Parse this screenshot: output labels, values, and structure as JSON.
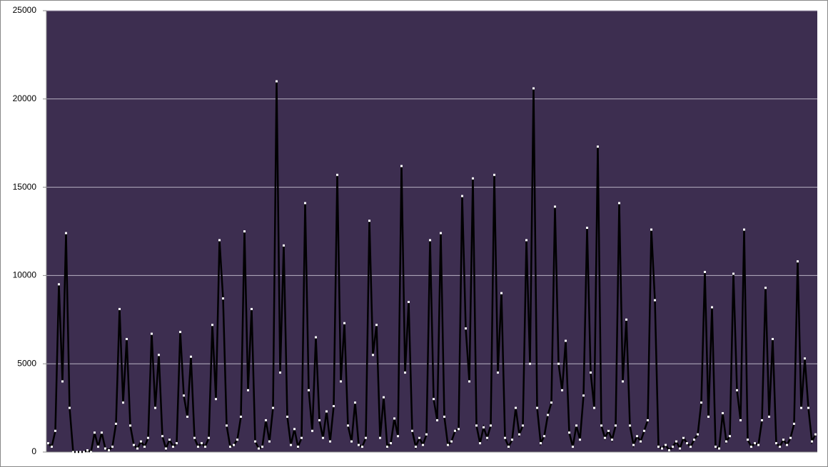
{
  "chart_data": {
    "type": "line",
    "ylim": [
      0,
      25000
    ],
    "yticks": [
      0,
      5000,
      10000,
      15000,
      20000,
      25000
    ],
    "grid": true,
    "plot_background": "#3d2e50",
    "grid_color": "#b9b2c4",
    "series": [
      {
        "color": "#000000",
        "marker_color": "#ffffff",
        "values": [
          500,
          300,
          1200,
          9500,
          4000,
          12400,
          2500,
          0,
          0,
          0,
          0,
          100,
          0,
          1100,
          300,
          1100,
          200,
          100,
          300,
          1600,
          8100,
          2800,
          6400,
          1500,
          400,
          200,
          600,
          300,
          800,
          6700,
          2500,
          5500,
          900,
          200,
          700,
          300,
          500,
          6800,
          3200,
          2000,
          5400,
          800,
          300,
          500,
          300,
          800,
          7200,
          3000,
          12000,
          8700,
          1500,
          300,
          400,
          700,
          2000,
          12500,
          3500,
          8100,
          600,
          200,
          300,
          1800,
          600,
          2500,
          21000,
          4500,
          11700,
          2000,
          400,
          1300,
          300,
          800,
          14100,
          3500,
          1200,
          6500,
          1800,
          800,
          2300,
          600,
          2600,
          15700,
          4000,
          7300,
          1500,
          600,
          2800,
          400,
          300,
          800,
          13100,
          5500,
          7200,
          800,
          3100,
          300,
          500,
          1900,
          900,
          16200,
          4500,
          8500,
          1200,
          300,
          800,
          400,
          1000,
          12000,
          3000,
          1800,
          12400,
          2000,
          400,
          600,
          1200,
          1300,
          14500,
          7000,
          4000,
          15500,
          1500,
          500,
          1400,
          800,
          1500,
          15700,
          4500,
          9000,
          800,
          300,
          700,
          2500,
          1000,
          1500,
          12000,
          5000,
          20600,
          2500,
          500,
          900,
          2100,
          2800,
          13900,
          5000,
          3500,
          6300,
          1100,
          300,
          1500,
          700,
          3200,
          12700,
          4500,
          2500,
          17300,
          1500,
          800,
          1200,
          700,
          1500,
          14100,
          4000,
          7500,
          1500,
          400,
          900,
          600,
          1200,
          1800,
          12600,
          8600,
          300,
          200,
          400,
          100,
          300,
          600,
          200,
          800,
          500,
          300,
          700,
          1000,
          2800,
          10200,
          2000,
          8200,
          300,
          200,
          2200,
          600,
          900,
          10100,
          3500,
          1800,
          12600,
          700,
          300,
          500,
          400,
          1800,
          9300,
          2000,
          6400,
          500,
          300,
          700,
          400,
          800,
          1600,
          10800,
          2500,
          5300,
          2500,
          600,
          1000
        ]
      }
    ]
  }
}
